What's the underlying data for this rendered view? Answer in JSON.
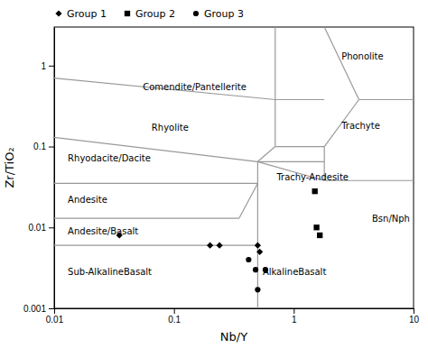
{
  "chart_data": {
    "type": "scatter",
    "xlabel": "Nb/Y",
    "ylabel": "Zr/TiO₂",
    "log": true,
    "xlim": [
      0.01,
      10
    ],
    "ylim": [
      0.001,
      3
    ],
    "xticks": [
      0.01,
      0.1,
      1,
      10
    ],
    "yticks": [
      0.001,
      0.01,
      0.1,
      1
    ],
    "legend": "upper left",
    "series": [
      {
        "type": "line",
        "color": "#999999",
        "x": [
          0.5,
          0.5
        ],
        "values": [
          0.001,
          0.065
        ]
      },
      {
        "type": "line",
        "color": "#999999",
        "x": [
          0.5,
          0.7
        ],
        "values": [
          0.065,
          0.1
        ]
      },
      {
        "type": "line",
        "color": "#999999",
        "x": [
          0.7,
          0.7
        ],
        "values": [
          0.1,
          3.0
        ]
      },
      {
        "type": "line",
        "color": "#999999",
        "x": [
          0.5,
          1.8
        ],
        "values": [
          0.065,
          0.065
        ]
      },
      {
        "type": "line",
        "color": "#999999",
        "x": [
          0.7,
          1.8
        ],
        "values": [
          0.1,
          0.1
        ]
      },
      {
        "type": "line",
        "color": "#999999",
        "x": [
          1.8,
          1.8
        ],
        "values": [
          0.038,
          0.1
        ]
      },
      {
        "type": "line",
        "color": "#999999",
        "x": [
          1.8,
          10
        ],
        "values": [
          0.038,
          0.038
        ]
      },
      {
        "type": "line",
        "color": "#999999",
        "x": [
          1.8,
          3.5
        ],
        "values": [
          0.1,
          0.38
        ]
      },
      {
        "type": "line",
        "color": "#999999",
        "x": [
          0.7,
          1.8
        ],
        "values": [
          0.38,
          0.38
        ]
      },
      {
        "type": "line",
        "color": "#999999",
        "x": [
          3.5,
          10
        ],
        "values": [
          0.38,
          0.38
        ]
      },
      {
        "type": "line",
        "color": "#999999",
        "x": [
          1.8,
          3.5
        ],
        "values": [
          3.0,
          0.38
        ]
      },
      {
        "type": "line",
        "color": "#999999",
        "x": [
          0.01,
          0.7
        ],
        "values": [
          0.7,
          0.38
        ]
      },
      {
        "type": "line",
        "color": "#999999",
        "x": [
          0.01,
          0.5
        ],
        "values": [
          0.13,
          0.065
        ]
      },
      {
        "type": "line",
        "color": "#999999",
        "x": [
          0.01,
          0.5
        ],
        "values": [
          0.035,
          0.035
        ]
      },
      {
        "type": "line",
        "color": "#999999",
        "x": [
          0.01,
          0.35
        ],
        "values": [
          0.013,
          0.013
        ]
      },
      {
        "type": "line",
        "color": "#999999",
        "x": [
          0.35,
          0.5
        ],
        "values": [
          0.013,
          0.035
        ]
      },
      {
        "type": "line",
        "color": "#999999",
        "x": [
          0.01,
          0.5
        ],
        "values": [
          0.006,
          0.006
        ]
      },
      {
        "type": "line",
        "color": "#999999",
        "x": [
          0.5,
          1.8
        ],
        "values": [
          0.065,
          0.038
        ]
      },
      {
        "name": "Group 1",
        "type": "scatter",
        "marker": "diamond",
        "color": "#000000",
        "x": [
          0.035,
          0.2,
          0.24,
          0.5,
          0.52
        ],
        "values": [
          0.008,
          0.006,
          0.006,
          0.006,
          0.005
        ]
      },
      {
        "name": "Group 2",
        "type": "scatter",
        "marker": "square",
        "color": "#000000",
        "x": [
          1.5,
          1.55,
          1.65
        ],
        "values": [
          0.028,
          0.01,
          0.008
        ]
      },
      {
        "name": "Group 3",
        "type": "scatter",
        "marker": "circle",
        "color": "#000000",
        "x": [
          0.42,
          0.48,
          0.5,
          0.58
        ],
        "values": [
          0.004,
          0.003,
          0.0017,
          0.003
        ]
      }
    ],
    "annotations": [
      {
        "text": "Comendite/Pantellerite",
        "x": 0.055,
        "y": 0.55
      },
      {
        "text": "Rhyolite",
        "x": 0.065,
        "y": 0.17
      },
      {
        "text": "Rhyodacite/Dacite",
        "x": 0.013,
        "y": 0.072
      },
      {
        "text": "Andesite",
        "x": 0.013,
        "y": 0.022
      },
      {
        "text": "Andesite/Basalt",
        "x": 0.013,
        "y": 0.009
      },
      {
        "text": "Sub-AlkalineBasalt",
        "x": 0.013,
        "y": 0.0028
      },
      {
        "text": "AlkalineBasalt",
        "x": 0.55,
        "y": 0.0028
      },
      {
        "text": "Phonolite",
        "x": 2.5,
        "y": 1.3
      },
      {
        "text": "Trachyte",
        "x": 2.5,
        "y": 0.18
      },
      {
        "text": "Trachy-Andesite",
        "x": 0.72,
        "y": 0.042
      },
      {
        "text": "Bsn/Nph",
        "x": 4.5,
        "y": 0.013
      }
    ]
  }
}
